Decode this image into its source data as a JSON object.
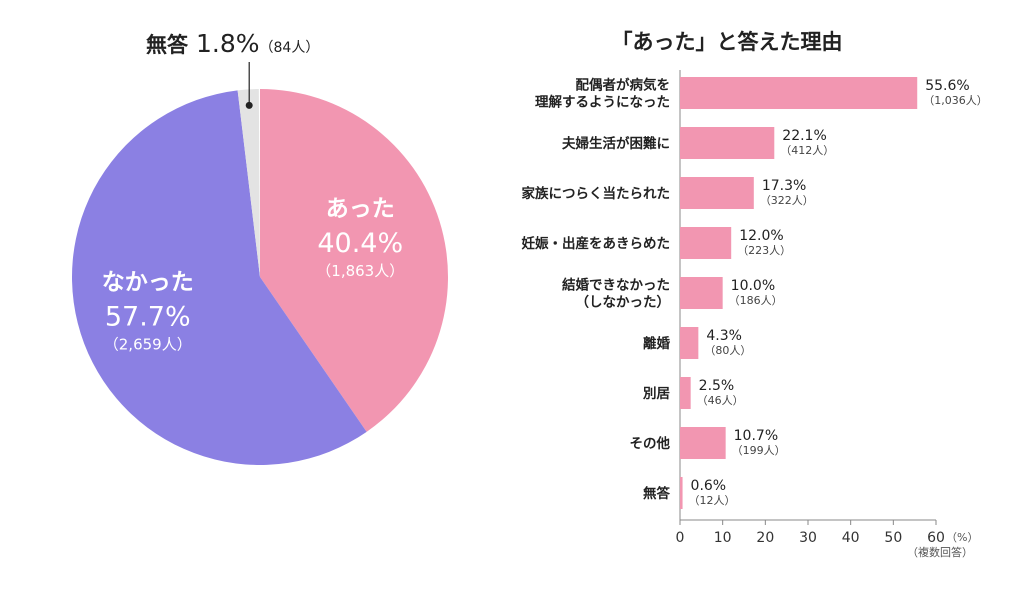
{
  "chart_data": [
    {
      "type": "pie",
      "slices": [
        {
          "label": "あった",
          "percent": 40.4,
          "count_label": "（1,863人）",
          "percent_label": "40.4%",
          "color": "#f296b1"
        },
        {
          "label": "なかった",
          "percent": 57.7,
          "count_label": "（2,659人）",
          "percent_label": "57.7%",
          "color": "#8b80e3"
        },
        {
          "label": "無答",
          "percent": 1.8,
          "count_label": "（84人）",
          "percent_label": "1.8%",
          "color": "#e3e3e3"
        }
      ]
    },
    {
      "type": "bar",
      "orientation": "horizontal",
      "title": "「あった」と答えた理由",
      "categories": [
        "配偶者が病気を理解するようになった",
        "夫婦生活が困難に",
        "家族につらく当たられた",
        "妊娠・出産をあきらめた",
        "結婚できなかった（しなかった）",
        "離婚",
        "別居",
        "その他",
        "無答"
      ],
      "category_lines": [
        [
          "配偶者が病気を",
          "理解するようになった"
        ],
        [
          "夫婦生活が困難に"
        ],
        [
          "家族につらく当たられた"
        ],
        [
          "妊娠・出産をあきらめた"
        ],
        [
          "結婚できなかった",
          "（しなかった）"
        ],
        [
          "離婚"
        ],
        [
          "別居"
        ],
        [
          "その他"
        ],
        [
          "無答"
        ]
      ],
      "values": [
        55.6,
        22.1,
        17.3,
        12.0,
        10.0,
        4.3,
        2.5,
        10.7,
        0.6
      ],
      "value_labels": [
        "55.6%",
        "22.1%",
        "17.3%",
        "12.0%",
        "10.0%",
        "4.3%",
        "2.5%",
        "10.7%",
        "0.6%"
      ],
      "count_labels": [
        "（1,036人）",
        "（412人）",
        "（322人）",
        "（223人）",
        "（186人）",
        "（80人）",
        "（46人）",
        "（199人）",
        "（12人）"
      ],
      "xlim": [
        0,
        60
      ],
      "xticks": [
        0,
        10,
        20,
        30,
        40,
        50,
        60
      ],
      "x_unit": "（%）",
      "note": "（複数回答）",
      "bar_color": "#f296b1"
    }
  ]
}
